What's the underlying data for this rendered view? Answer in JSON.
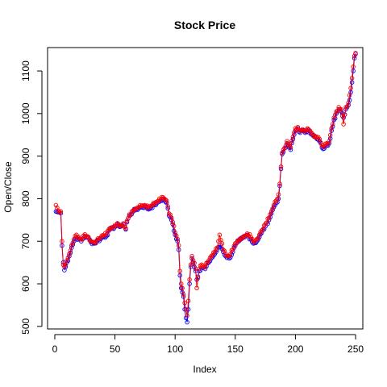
{
  "chart_data": {
    "type": "line",
    "title": "Stock Price",
    "xlabel": "Index",
    "ylabel": "Open/Close",
    "xlim": [
      -6,
      256
    ],
    "ylim": [
      494,
      1155
    ],
    "xticks": [
      0,
      50,
      100,
      150,
      200,
      250
    ],
    "yticks": [
      500,
      600,
      700,
      800,
      900,
      1000,
      1100
    ],
    "series": [
      {
        "color": "#0000ff",
        "marker": "circle",
        "anchors": [
          [
            1,
            770
          ],
          [
            3,
            768
          ],
          [
            5,
            766
          ],
          [
            6,
            690
          ],
          [
            7,
            650
          ],
          [
            8,
            632
          ],
          [
            9,
            640
          ],
          [
            10,
            650
          ],
          [
            12,
            665
          ],
          [
            14,
            685
          ],
          [
            16,
            700
          ],
          [
            18,
            710
          ],
          [
            20,
            705
          ],
          [
            22,
            700
          ],
          [
            25,
            712
          ],
          [
            28,
            708
          ],
          [
            30,
            698
          ],
          [
            33,
            695
          ],
          [
            35,
            700
          ],
          [
            38,
            705
          ],
          [
            40,
            710
          ],
          [
            43,
            712
          ],
          [
            45,
            725
          ],
          [
            48,
            730
          ],
          [
            50,
            735
          ],
          [
            53,
            738
          ],
          [
            55,
            735
          ],
          [
            57,
            740
          ],
          [
            59,
            728
          ],
          [
            60,
            745
          ],
          [
            62,
            760
          ],
          [
            65,
            770
          ],
          [
            68,
            775
          ],
          [
            70,
            778
          ],
          [
            72,
            780
          ],
          [
            75,
            782
          ],
          [
            78,
            775
          ],
          [
            80,
            780
          ],
          [
            83,
            785
          ],
          [
            85,
            790
          ],
          [
            88,
            795
          ],
          [
            90,
            800
          ],
          [
            93,
            790
          ],
          [
            95,
            760
          ],
          [
            97,
            750
          ],
          [
            98,
            740
          ],
          [
            100,
            715
          ],
          [
            102,
            700
          ],
          [
            103,
            680
          ],
          [
            104,
            620
          ],
          [
            105,
            590
          ],
          [
            106,
            580
          ],
          [
            107,
            570
          ],
          [
            108,
            540
          ],
          [
            109,
            520
          ],
          [
            110,
            510
          ],
          [
            111,
            540
          ],
          [
            112,
            600
          ],
          [
            113,
            640
          ],
          [
            114,
            660
          ],
          [
            115,
            650
          ],
          [
            117,
            630
          ],
          [
            118,
            610
          ],
          [
            120,
            630
          ],
          [
            122,
            640
          ],
          [
            125,
            635
          ],
          [
            128,
            650
          ],
          [
            130,
            660
          ],
          [
            133,
            670
          ],
          [
            135,
            680
          ],
          [
            138,
            690
          ],
          [
            140,
            675
          ],
          [
            142,
            665
          ],
          [
            145,
            660
          ],
          [
            148,
            675
          ],
          [
            150,
            690
          ],
          [
            153,
            700
          ],
          [
            155,
            705
          ],
          [
            158,
            710
          ],
          [
            160,
            715
          ],
          [
            163,
            705
          ],
          [
            165,
            695
          ],
          [
            168,
            700
          ],
          [
            170,
            710
          ],
          [
            172,
            720
          ],
          [
            175,
            735
          ],
          [
            178,
            750
          ],
          [
            180,
            765
          ],
          [
            182,
            780
          ],
          [
            184,
            790
          ],
          [
            186,
            800
          ],
          [
            187,
            830
          ],
          [
            188,
            870
          ],
          [
            189,
            905
          ],
          [
            190,
            910
          ],
          [
            192,
            920
          ],
          [
            193,
            930
          ],
          [
            195,
            920
          ],
          [
            196,
            915
          ],
          [
            198,
            940
          ],
          [
            200,
            960
          ],
          [
            202,
            965
          ],
          [
            204,
            955
          ],
          [
            206,
            960
          ],
          [
            208,
            955
          ],
          [
            210,
            962
          ],
          [
            212,
            958
          ],
          [
            214,
            950
          ],
          [
            216,
            945
          ],
          [
            218,
            940
          ],
          [
            220,
            935
          ],
          [
            222,
            920
          ],
          [
            224,
            918
          ],
          [
            226,
            925
          ],
          [
            228,
            930
          ],
          [
            230,
            960
          ],
          [
            232,
            985
          ],
          [
            234,
            1000
          ],
          [
            236,
            1010
          ],
          [
            238,
            1005
          ],
          [
            240,
            990
          ],
          [
            242,
            1010
          ],
          [
            244,
            1020
          ],
          [
            246,
            1050
          ],
          [
            248,
            1100
          ],
          [
            249,
            1130
          ],
          [
            250,
            1140
          ]
        ]
      },
      {
        "color": "#ff0000",
        "marker": "circle",
        "anchors": [
          [
            1,
            785
          ],
          [
            3,
            772
          ],
          [
            5,
            770
          ],
          [
            6,
            700
          ],
          [
            7,
            645
          ],
          [
            8,
            640
          ],
          [
            9,
            645
          ],
          [
            10,
            655
          ],
          [
            12,
            670
          ],
          [
            14,
            690
          ],
          [
            16,
            705
          ],
          [
            18,
            715
          ],
          [
            20,
            710
          ],
          [
            22,
            705
          ],
          [
            25,
            716
          ],
          [
            28,
            710
          ],
          [
            30,
            700
          ],
          [
            33,
            698
          ],
          [
            35,
            703
          ],
          [
            38,
            708
          ],
          [
            40,
            714
          ],
          [
            43,
            716
          ],
          [
            45,
            728
          ],
          [
            48,
            733
          ],
          [
            50,
            738
          ],
          [
            53,
            740
          ],
          [
            55,
            738
          ],
          [
            57,
            742
          ],
          [
            59,
            730
          ],
          [
            60,
            748
          ],
          [
            62,
            763
          ],
          [
            65,
            772
          ],
          [
            68,
            778
          ],
          [
            70,
            780
          ],
          [
            72,
            783
          ],
          [
            75,
            785
          ],
          [
            78,
            778
          ],
          [
            80,
            783
          ],
          [
            83,
            788
          ],
          [
            85,
            793
          ],
          [
            88,
            798
          ],
          [
            90,
            803
          ],
          [
            93,
            795
          ],
          [
            95,
            765
          ],
          [
            97,
            755
          ],
          [
            98,
            745
          ],
          [
            100,
            720
          ],
          [
            102,
            705
          ],
          [
            103,
            690
          ],
          [
            104,
            630
          ],
          [
            105,
            600
          ],
          [
            106,
            590
          ],
          [
            107,
            575
          ],
          [
            108,
            555
          ],
          [
            109,
            540
          ],
          [
            110,
            525
          ],
          [
            111,
            560
          ],
          [
            112,
            610
          ],
          [
            113,
            645
          ],
          [
            114,
            665
          ],
          [
            115,
            655
          ],
          [
            117,
            635
          ],
          [
            118,
            590
          ],
          [
            120,
            635
          ],
          [
            122,
            645
          ],
          [
            125,
            640
          ],
          [
            128,
            655
          ],
          [
            130,
            665
          ],
          [
            133,
            675
          ],
          [
            135,
            685
          ],
          [
            137,
            715
          ],
          [
            140,
            680
          ],
          [
            142,
            670
          ],
          [
            145,
            665
          ],
          [
            148,
            680
          ],
          [
            150,
            695
          ],
          [
            153,
            703
          ],
          [
            155,
            708
          ],
          [
            158,
            713
          ],
          [
            160,
            718
          ],
          [
            163,
            710
          ],
          [
            165,
            700
          ],
          [
            168,
            705
          ],
          [
            170,
            715
          ],
          [
            172,
            725
          ],
          [
            175,
            740
          ],
          [
            178,
            755
          ],
          [
            180,
            770
          ],
          [
            182,
            785
          ],
          [
            184,
            795
          ],
          [
            186,
            810
          ],
          [
            187,
            835
          ],
          [
            188,
            875
          ],
          [
            189,
            908
          ],
          [
            190,
            915
          ],
          [
            192,
            925
          ],
          [
            193,
            935
          ],
          [
            195,
            925
          ],
          [
            196,
            920
          ],
          [
            198,
            945
          ],
          [
            200,
            965
          ],
          [
            202,
            968
          ],
          [
            204,
            960
          ],
          [
            206,
            963
          ],
          [
            208,
            958
          ],
          [
            210,
            965
          ],
          [
            212,
            960
          ],
          [
            214,
            953
          ],
          [
            216,
            948
          ],
          [
            218,
            945
          ],
          [
            220,
            940
          ],
          [
            222,
            925
          ],
          [
            224,
            922
          ],
          [
            226,
            930
          ],
          [
            228,
            935
          ],
          [
            230,
            965
          ],
          [
            232,
            990
          ],
          [
            234,
            1005
          ],
          [
            236,
            1015
          ],
          [
            238,
            1010
          ],
          [
            240,
            975
          ],
          [
            242,
            1015
          ],
          [
            244,
            1025
          ],
          [
            246,
            1060
          ],
          [
            248,
            1110
          ],
          [
            249,
            1135
          ],
          [
            250,
            1142
          ]
        ]
      }
    ],
    "grid": false,
    "legend": "none"
  }
}
